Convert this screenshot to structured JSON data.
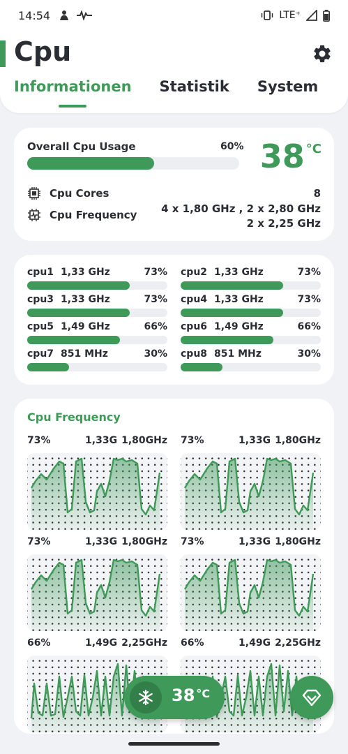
{
  "status_bar": {
    "time": "14:54",
    "network": "LTE⁺"
  },
  "header": {
    "title": "Cpu",
    "tabs": [
      {
        "label": "Informationen",
        "active": true
      },
      {
        "label": "Statistik",
        "active": false
      },
      {
        "label": "System",
        "active": false
      }
    ]
  },
  "overview": {
    "usage_label": "Overall Cpu Usage",
    "usage_percent": "60%",
    "usage_value": 60,
    "temperature": "38",
    "temperature_unit": "°C",
    "cores_label": "Cpu Cores",
    "cores_value": "8",
    "frequency_label": "Cpu Frequency",
    "frequency_line1": "4 x 1,80 GHz , 2 x 2,80 GHz",
    "frequency_line2": "2 x 2,25 GHz"
  },
  "cpus": [
    {
      "name": "cpu1",
      "freq": "1,33 GHz",
      "percent": "73%",
      "value": 73
    },
    {
      "name": "cpu2",
      "freq": "1,33 GHz",
      "percent": "73%",
      "value": 73
    },
    {
      "name": "cpu3",
      "freq": "1,33 GHz",
      "percent": "73%",
      "value": 73
    },
    {
      "name": "cpu4",
      "freq": "1,33 GHz",
      "percent": "73%",
      "value": 73
    },
    {
      "name": "cpu5",
      "freq": "1,49 GHz",
      "percent": "66%",
      "value": 66
    },
    {
      "name": "cpu6",
      "freq": "1,49 GHz",
      "percent": "66%",
      "value": 66
    },
    {
      "name": "cpu7",
      "freq": "851 MHz",
      "percent": "30%",
      "value": 30
    },
    {
      "name": "cpu8",
      "freq": "851 MHz",
      "percent": "30%",
      "value": 30
    }
  ],
  "frequency_card": {
    "title": "Cpu Frequency",
    "graphs": [
      {
        "percent": "73%",
        "current": "1,33G",
        "max": "1,80GHz"
      },
      {
        "percent": "73%",
        "current": "1,33G",
        "max": "1,80GHz"
      },
      {
        "percent": "73%",
        "current": "1,33G",
        "max": "1,80GHz"
      },
      {
        "percent": "73%",
        "current": "1,33G",
        "max": "1,80GHz"
      },
      {
        "percent": "66%",
        "current": "1,49G",
        "max": "2,25GHz"
      },
      {
        "percent": "66%",
        "current": "1,49G",
        "max": "2,25GHz"
      }
    ]
  },
  "temp_pill": {
    "value": "38",
    "unit": "°C"
  },
  "colors": {
    "accent": "#3f9a5a",
    "accent_dark": "#337f49",
    "track": "#eceef1",
    "background": "#f1f2f5"
  },
  "icons": {
    "settings": "gear-icon",
    "cores": "chip-icon",
    "frequency": "chip-pulse-icon",
    "cooler": "snowflake-icon",
    "fab": "heart-gem-icon"
  }
}
